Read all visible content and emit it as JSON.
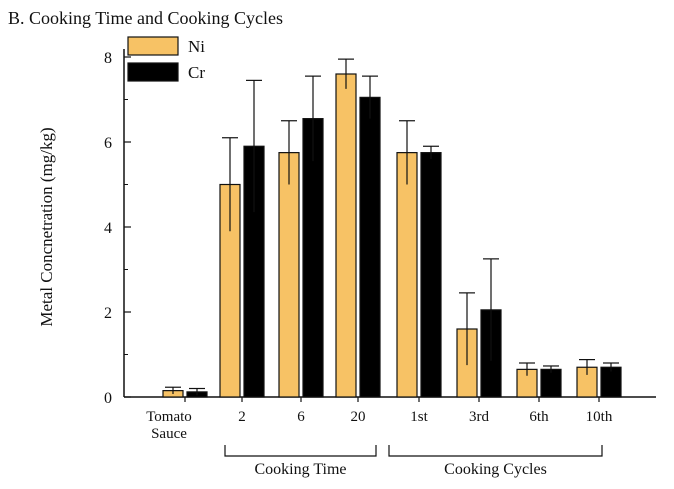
{
  "chart_data": {
    "type": "bar",
    "title": "B. Cooking Time and Cooking Cycles",
    "ylabel": "Metal Concnetration (mg/kg)",
    "xlabel": "",
    "ylim": [
      0,
      8
    ],
    "yticks": [
      0,
      2,
      4,
      6,
      8
    ],
    "categories": [
      "Tomato\nSauce",
      "2",
      "6",
      "20",
      "1st",
      "3rd",
      "6th",
      "10th"
    ],
    "series": [
      {
        "name": "Ni",
        "color": "#f7c265",
        "values": [
          0.15,
          5.0,
          5.75,
          7.6,
          5.75,
          1.6,
          0.65,
          0.7
        ],
        "errors": [
          0.08,
          1.1,
          0.75,
          0.35,
          0.75,
          0.85,
          0.15,
          0.18
        ]
      },
      {
        "name": "Cr",
        "color": "#000000",
        "values": [
          0.12,
          5.9,
          6.55,
          7.05,
          5.75,
          2.05,
          0.65,
          0.7
        ],
        "errors": [
          0.08,
          1.55,
          1.0,
          0.5,
          0.15,
          1.2,
          0.08,
          0.1
        ]
      }
    ],
    "groups": [
      {
        "label": "Cooking Time"
      },
      {
        "label": "Cooking Cycles"
      }
    ],
    "legend_position": "top-left",
    "grid": false
  }
}
